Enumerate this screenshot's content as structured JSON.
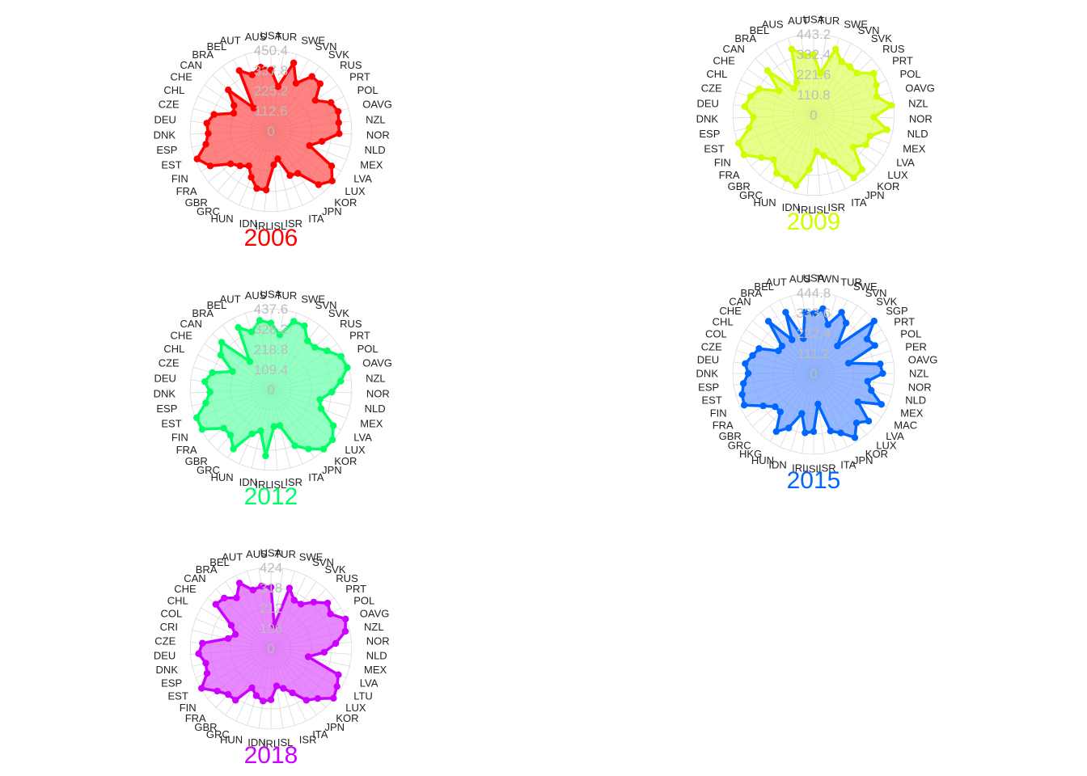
{
  "chart_data": [
    {
      "type": "radar",
      "title": "2006",
      "color": "#FF0000",
      "fill": "#FF4D4D",
      "ring_labels": [
        "0",
        "112.6",
        "225.2",
        "337.8",
        "450.4"
      ],
      "categories": [
        "USA",
        "TUR",
        "SWE",
        "SVN",
        "SVK",
        "RUS",
        "PRT",
        "POL",
        "OAVG",
        "NZL",
        "NOR",
        "NLD",
        "MEX",
        "LVA",
        "LUX",
        "KOR",
        "JPN",
        "ITA",
        "ISR",
        "ISL",
        "IRL",
        "IDN",
        "HUN",
        "GRC",
        "GBR",
        "FRA",
        "FIN",
        "EST",
        "ESP",
        "DNK",
        "DEU",
        "CZE",
        "CHL",
        "CHE",
        "CAN",
        "BRA",
        "BEL",
        "AUT",
        "AUS"
      ],
      "values": [
        340,
        250,
        400,
        300,
        380,
        380,
        300,
        370,
        390,
        380,
        380,
        290,
        230,
        390,
        440,
        400,
        280,
        270,
        160,
        190,
        330,
        330,
        280,
        230,
        260,
        290,
        390,
        440,
        370,
        350,
        360,
        330,
        230,
        250,
        330,
        160,
        380,
        330,
        360
      ],
      "ylim": [
        0,
        450.4
      ]
    },
    {
      "type": "radar",
      "title": "2009",
      "color": "#CCFF00",
      "fill": "#DDFF55",
      "ring_labels": [
        "0",
        "110.8",
        "221.6",
        "332.4",
        "443.2"
      ],
      "categories": [
        "USA",
        "TUR",
        "SWE",
        "SVN",
        "SVK",
        "RUS",
        "PRT",
        "POL",
        "OAVG",
        "NZL",
        "NOR",
        "NLD",
        "MEX",
        "LVA",
        "LUX",
        "KOR",
        "JPN",
        "ITA",
        "ISR",
        "ISL",
        "IRL",
        "IDN",
        "HUN",
        "GRC",
        "GBR",
        "FRA",
        "FIN",
        "EST",
        "ESP",
        "DNK",
        "DEU",
        "CZE",
        "CHL",
        "CHE",
        "CAN",
        "BRA",
        "BEL",
        "AUS",
        "AUT"
      ],
      "values": [
        330,
        230,
        380,
        330,
        330,
        330,
        400,
        380,
        360,
        430,
        330,
        410,
        330,
        330,
        280,
        400,
        410,
        280,
        230,
        200,
        300,
        400,
        380,
        380,
        330,
        370,
        440,
        440,
        360,
        330,
        380,
        360,
        330,
        230,
        350,
        180,
        200,
        380,
        330
      ],
      "ylim": [
        0,
        443.2
      ]
    },
    {
      "type": "radar",
      "title": "2012",
      "color": "#00FF66",
      "fill": "#66FFAA",
      "ring_labels": [
        "0",
        "109.4",
        "218.8",
        "328.2",
        "437.6"
      ],
      "categories": [
        "USA",
        "TUR",
        "SWE",
        "SVN",
        "SVK",
        "RUS",
        "PRT",
        "POL",
        "OAVG",
        "NZL",
        "NOR",
        "NLD",
        "MEX",
        "LVA",
        "LUX",
        "KOR",
        "JPN",
        "ITA",
        "ISR",
        "ISL",
        "IRL",
        "IDN",
        "HUN",
        "GRC",
        "GBR",
        "FRA",
        "FIN",
        "EST",
        "ESP",
        "DNK",
        "DEU",
        "CZE",
        "CHL",
        "CHE",
        "CAN",
        "BRA",
        "BEL",
        "AUT",
        "AUS"
      ],
      "values": [
        360,
        300,
        390,
        390,
        330,
        330,
        370,
        420,
        430,
        380,
        330,
        270,
        290,
        390,
        430,
        430,
        380,
        330,
        200,
        200,
        360,
        230,
        260,
        380,
        330,
        330,
        430,
        430,
        360,
        330,
        360,
        330,
        230,
        330,
        370,
        190,
        380,
        330,
        380
      ],
      "ylim": [
        0,
        437.6
      ]
    },
    {
      "type": "radar",
      "title": "2015",
      "color": "#0066FF",
      "fill": "#6699FF",
      "ring_labels": [
        "0",
        "111.2",
        "222.4",
        "333.6",
        "444.8"
      ],
      "categories": [
        "USA",
        "TWN",
        "TUR",
        "SWE",
        "SVN",
        "SVK",
        "SGP",
        "PRT",
        "POL",
        "PER",
        "OAVG",
        "NZL",
        "NOR",
        "NLD",
        "MEX",
        "MAC",
        "LVA",
        "LUX",
        "KOR",
        "JPN",
        "ITA",
        "ISR",
        "ISL",
        "IRL",
        "IDN",
        "HUN",
        "HKG",
        "GRC",
        "GBR",
        "FRA",
        "FIN",
        "EST",
        "ESP",
        "DNK",
        "DEU",
        "CZE",
        "COL",
        "CHL",
        "CHE",
        "CAN",
        "BRA",
        "BEL",
        "AUT",
        "AUS"
      ],
      "values": [
        330,
        360,
        280,
        370,
        330,
        200,
        440,
        350,
        370,
        200,
        370,
        380,
        300,
        330,
        410,
        290,
        400,
        360,
        420,
        360,
        330,
        170,
        320,
        330,
        230,
        330,
        380,
        280,
        280,
        330,
        420,
        410,
        390,
        360,
        380,
        350,
        330,
        230,
        230,
        380,
        220,
        370,
        200,
        340
      ],
      "ylim": [
        0,
        444.8
      ]
    },
    {
      "type": "radar",
      "title": "2018",
      "color": "#CC00FF",
      "fill": "#DD55FF",
      "ring_labels": [
        "0",
        "106",
        "212",
        "318",
        "424"
      ],
      "categories": [
        "USA",
        "TUR",
        "SWE",
        "SVN",
        "SVK",
        "RUS",
        "PRT",
        "POL",
        "OAVG",
        "NZL",
        "NOR",
        "NLD",
        "MEX",
        "LVA",
        "LTU",
        "LUX",
        "KOR",
        "JPN",
        "ITA",
        "ISR",
        "ISL",
        "IRL",
        "IDN",
        "HUN",
        "GRC",
        "GBR",
        "FRA",
        "FIN",
        "EST",
        "ESP",
        "DNK",
        "DEU",
        "CZE",
        "CRI",
        "COL",
        "CHL",
        "CHE",
        "CAN",
        "BRA",
        "BEL",
        "AUT",
        "AUS"
      ],
      "values": [
        320,
        120,
        330,
        280,
        280,
        330,
        380,
        360,
        420,
        400,
        340,
        280,
        200,
        380,
        400,
        420,
        360,
        330,
        260,
        220,
        200,
        270,
        280,
        260,
        230,
        330,
        330,
        360,
        420,
        360,
        350,
        380,
        360,
        230,
        200,
        240,
        370,
        360,
        320,
        380,
        320,
        330
      ],
      "ylim": [
        0,
        424
      ]
    }
  ]
}
